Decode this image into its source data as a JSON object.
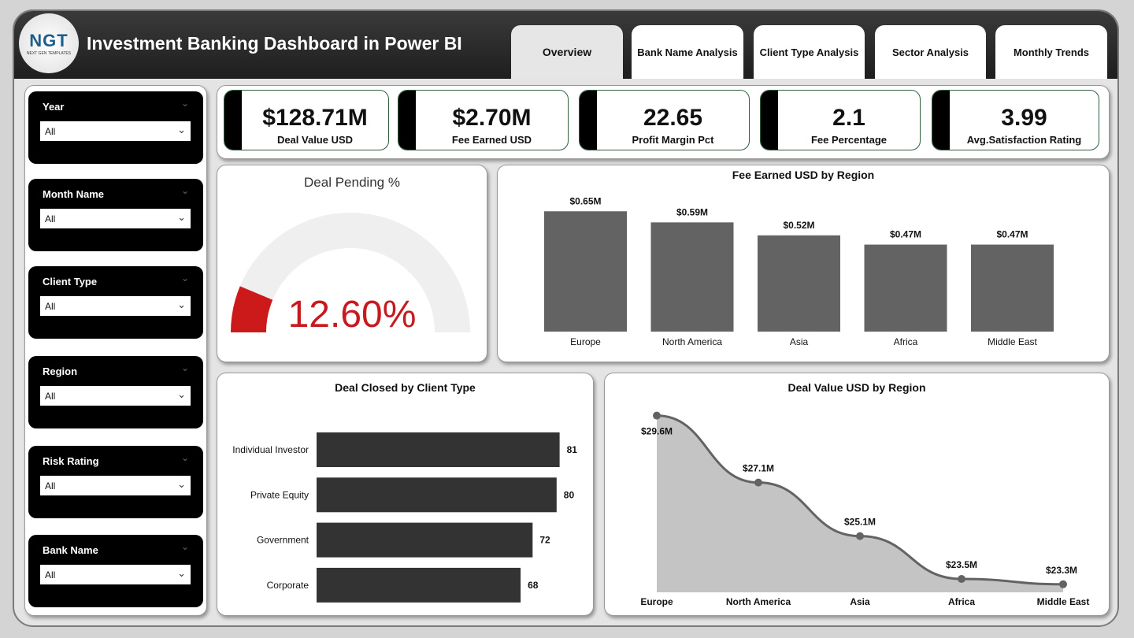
{
  "header": {
    "title": "Investment Banking Dashboard in Power BI",
    "logo_text": "NGT",
    "logo_sub": "NEXT GEN TEMPLATES"
  },
  "tabs": [
    {
      "label": "Overview",
      "active": true
    },
    {
      "label": "Bank Name Analysis"
    },
    {
      "label": "Client Type Analysis"
    },
    {
      "label": "Sector Analysis"
    },
    {
      "label": "Monthly Trends"
    }
  ],
  "slicers": [
    {
      "label": "Year",
      "value": "All"
    },
    {
      "label": "Month Name",
      "value": "All"
    },
    {
      "label": "Client Type",
      "value": "All"
    },
    {
      "label": "Region",
      "value": "All"
    },
    {
      "label": "Risk Rating",
      "value": "All"
    },
    {
      "label": "Bank Name",
      "value": "All"
    }
  ],
  "kpis": [
    {
      "value": "$128.71M",
      "label": "Deal Value USD"
    },
    {
      "value": "$2.70M",
      "label": "Fee Earned USD"
    },
    {
      "value": "22.65",
      "label": "Profit Margin Pct"
    },
    {
      "value": "2.1",
      "label": "Fee Percentage"
    },
    {
      "value": "3.99",
      "label": "Avg.Satisfaction Rating"
    }
  ],
  "colors": {
    "gauge_fill": "#cc1a1a",
    "gauge_track": "#f0efef",
    "bar": "#636363",
    "hbar": "#333333",
    "area": "#c4c4c4",
    "line": "#636363"
  },
  "chart_data": [
    {
      "type": "gauge",
      "title": "Deal Pending %",
      "value": 12.6,
      "label": "12.60%",
      "range": [
        0,
        100
      ]
    },
    {
      "type": "bar",
      "title": "Fee Earned USD by Region",
      "categories": [
        "Europe",
        "North America",
        "Asia",
        "Africa",
        "Middle East"
      ],
      "values": [
        0.65,
        0.59,
        0.52,
        0.47,
        0.47
      ],
      "data_labels": [
        "$0.65M",
        "$0.59M",
        "$0.52M",
        "$0.47M",
        "$0.47M"
      ],
      "unit": "USD M"
    },
    {
      "type": "bar",
      "orientation": "horizontal",
      "title": "Deal Closed by Client Type",
      "categories": [
        "Individual Investor",
        "Private Equity",
        "Government",
        "Corporate"
      ],
      "values": [
        81,
        80,
        72,
        68
      ],
      "data_labels": [
        "81",
        "80",
        "72",
        "68"
      ]
    },
    {
      "type": "area",
      "title": "Deal Value USD by Region",
      "categories": [
        "Europe",
        "North America",
        "Asia",
        "Africa",
        "Middle East"
      ],
      "values": [
        29.6,
        27.1,
        25.1,
        23.5,
        23.3
      ],
      "data_labels": [
        "$29.6M",
        "$27.1M",
        "$25.1M",
        "$23.5M",
        "$23.3M"
      ],
      "unit": "USD M"
    }
  ]
}
